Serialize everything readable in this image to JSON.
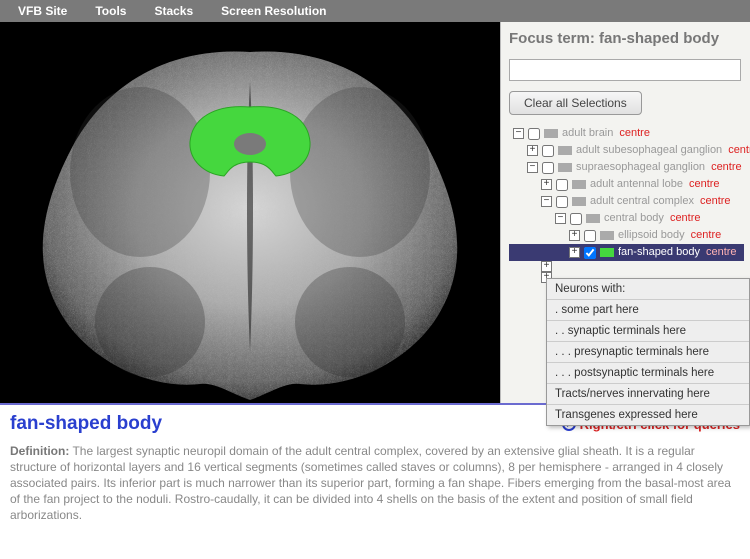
{
  "colors": {
    "menubar_bg": "#7a7a7a",
    "accent_blue": "#2a3fcf",
    "accent_red": "#d22",
    "highlight_green": "#45d73e",
    "selected_row_bg": "#3a3a72"
  },
  "menubar": {
    "items": [
      "VFB Site",
      "Tools",
      "Stacks",
      "Screen Resolution"
    ]
  },
  "sidepanel": {
    "focus_label": "Focus term:",
    "focus_term": "fan-shaped body",
    "search_value": "",
    "clear_button": "Clear all Selections",
    "centre_word": "centre",
    "tree": [
      {
        "indent": 0,
        "pm": "-",
        "checked": false,
        "swatch": "#aaa",
        "label": "adult brain",
        "selected": false
      },
      {
        "indent": 14,
        "pm": "+",
        "checked": false,
        "swatch": "#aaa",
        "label": "adult subesophageal ganglion",
        "selected": false
      },
      {
        "indent": 14,
        "pm": "-",
        "checked": false,
        "swatch": "#aaa",
        "label": "supraesophageal ganglion",
        "selected": false
      },
      {
        "indent": 28,
        "pm": "+",
        "checked": false,
        "swatch": "#aaa",
        "label": "adult antennal lobe",
        "selected": false
      },
      {
        "indent": 28,
        "pm": "-",
        "checked": false,
        "swatch": "#aaa",
        "label": "adult central complex",
        "selected": false
      },
      {
        "indent": 42,
        "pm": "-",
        "checked": false,
        "swatch": "#aaa",
        "label": "central body",
        "selected": false
      },
      {
        "indent": 56,
        "pm": "+",
        "checked": false,
        "swatch": "#aaa",
        "label": "ellipsoid body",
        "selected": false
      },
      {
        "indent": 56,
        "pm": "+",
        "checked": true,
        "swatch": "#45d73e",
        "label": "fan-shaped body",
        "selected": true
      },
      {
        "indent": 28,
        "pm": "+",
        "checked": false,
        "swatch": null,
        "label": "",
        "selected": false
      },
      {
        "indent": 28,
        "pm": "+",
        "checked": false,
        "swatch": null,
        "label": "",
        "selected": false
      }
    ],
    "context_menu": {
      "header": "Neurons with:",
      "items": [
        ". some part here",
        ". . synaptic terminals here",
        ". . . presynaptic terminals here",
        ". . . postsynaptic terminals here",
        "Tracts/nerves innervating here",
        "Transgenes expressed here"
      ]
    }
  },
  "detail": {
    "title": "fan-shaped body",
    "query_hint": "Right/ctrl click for queries",
    "definition_label": "Definition:",
    "definition_text": "The largest synaptic neuropil domain of the adult central complex, covered by an extensive glial sheath. It is a regular structure of horizontal layers and 16 vertical segments (sometimes called staves or columns), 8 per hemisphere - arranged in 4 closely associated pairs. Its inferior part is much narrower than its superior part, forming a fan shape. Fibers emerging from the basal-most area of the fan project to the noduli. Rostro-caudally, it can be divided into 4 shells on the basis of the extent and position of small field arborizations."
  }
}
